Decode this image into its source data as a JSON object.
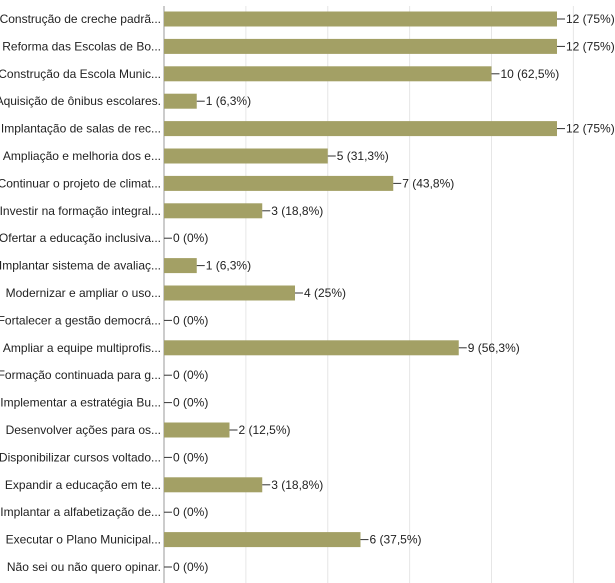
{
  "chart_data": {
    "type": "bar",
    "orientation": "horizontal",
    "title": "",
    "xlabel": "",
    "ylabel": "",
    "grid": true,
    "bar_color": "#a3a065",
    "xlim": [
      0,
      12.5
    ],
    "categories": [
      "Construção de creche padrã...",
      "Reforma das Escolas de Bo...",
      "Construção da Escola Munic...",
      "Aquisição de ônibus escolares.",
      "Implantação de salas de rec...",
      "Ampliação e melhoria dos e...",
      "Continuar o projeto de climat...",
      "Investir na formação integral...",
      "Ofertar a educação inclusiva...",
      "Implantar sistema de avaliaç...",
      "Modernizar e ampliar o uso...",
      "Fortalecer a gestão democrá...",
      "Ampliar a equipe multiprofis...",
      "Formação continuada para g...",
      "Implementar a estratégia Bu...",
      "Desenvolver ações para os...",
      "Disponibilizar cursos voltado...",
      "Expandir a educação em te...",
      "Implantar a alfabetização de...",
      "Executar o Plano Municipal...",
      "Não sei ou não quero opinar."
    ],
    "values": [
      12,
      12,
      10,
      1,
      12,
      5,
      7,
      3,
      0,
      1,
      4,
      0,
      9,
      0,
      0,
      2,
      0,
      3,
      0,
      6,
      0
    ],
    "data_labels": [
      "12 (75%)",
      "12 (75%)",
      "10 (62,5%)",
      "1 (6,3%)",
      "12 (75%)",
      "5 (31,3%)",
      "7 (43,8%)",
      "3 (18,8%)",
      "0 (0%)",
      "1 (6,3%)",
      "4 (25%)",
      "0 (0%)",
      "9 (56,3%)",
      "0 (0%)",
      "0 (0%)",
      "2 (12,5%)",
      "0 (0%)",
      "3 (18,8%)",
      "0 (0%)",
      "6 (37,5%)",
      "0 (0%)"
    ]
  }
}
